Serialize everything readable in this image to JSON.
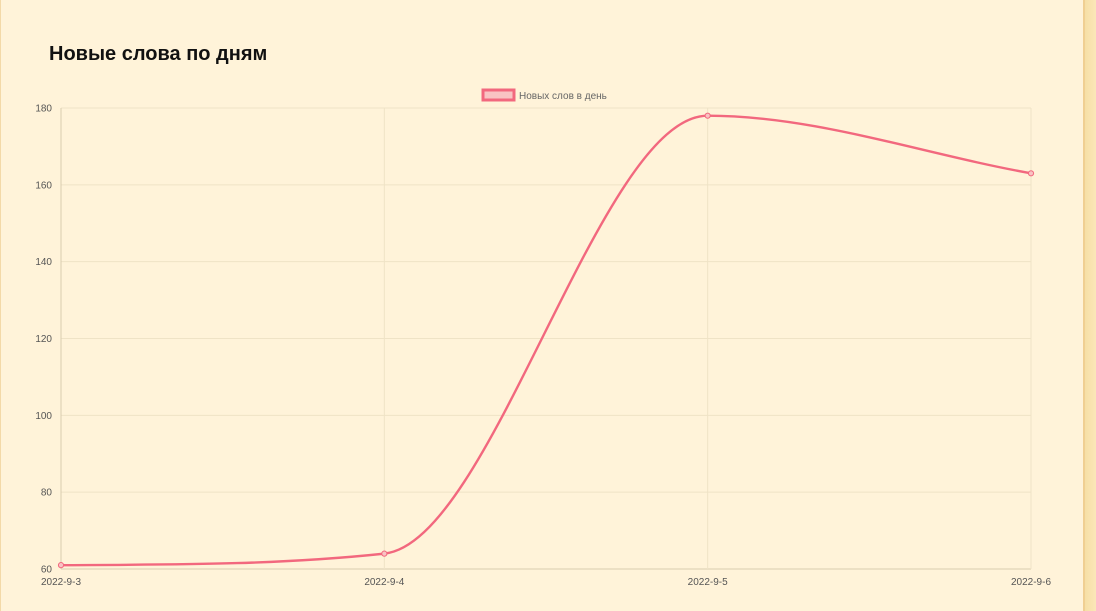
{
  "page": {
    "title": "Новые слова по дням"
  },
  "chart_data": {
    "type": "line",
    "categories": [
      "2022-9-3",
      "2022-9-4",
      "2022-9-5",
      "2022-9-6"
    ],
    "series": [
      {
        "name": "Новых слов в день",
        "values": [
          61,
          64,
          178,
          163
        ],
        "color": "#f2687e",
        "fill": "#f9c3c3"
      }
    ],
    "y_ticks": [
      60,
      80,
      100,
      120,
      140,
      160,
      180
    ],
    "ylim": [
      60,
      180
    ],
    "grid": true,
    "legend_position": "top-center",
    "curve": "smooth"
  }
}
